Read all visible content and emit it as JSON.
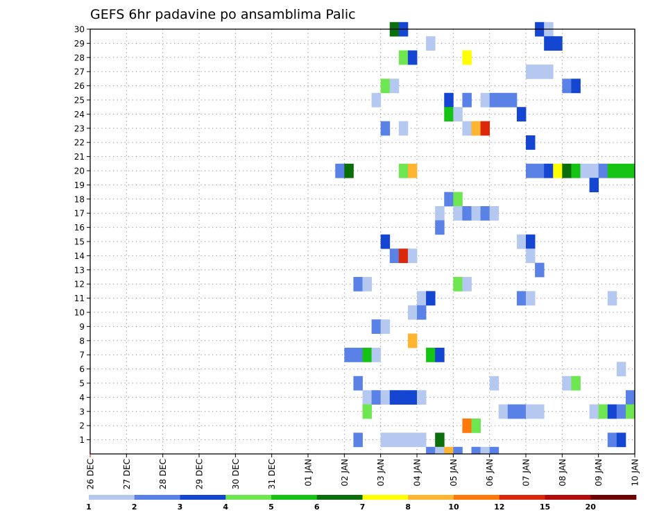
{
  "chart_data": {
    "type": "heatmap",
    "title": "GEFS 6hr padavine po ansamblima Palic",
    "x_tick_labels": [
      "26 DEC",
      "27 DEC",
      "28 DEC",
      "29 DEC",
      "30 DEC",
      "31 DEC",
      "01 JAN",
      "02 JAN",
      "03 JAN",
      "04 JAN",
      "05 JAN",
      "06 JAN",
      "07 JAN",
      "08 JAN",
      "09 JAN",
      "10 JAN"
    ],
    "y_tick_labels": [
      "1",
      "2",
      "3",
      "4",
      "5",
      "6",
      "7",
      "8",
      "9",
      "10",
      "11",
      "12",
      "13",
      "14",
      "15",
      "16",
      "17",
      "18",
      "19",
      "20",
      "21",
      "22",
      "23",
      "24",
      "25",
      "26",
      "27",
      "28",
      "29",
      "30"
    ],
    "grid": true,
    "legend": {
      "placement": "bottom",
      "colors": [
        "#b4c8f0",
        "#5a82e6",
        "#1446d2",
        "#6ee650",
        "#14c314",
        "#0a6e0a",
        "#ffff00",
        "#ffb432",
        "#ff780a",
        "#dc280a",
        "#b40a0a",
        "#6e0000"
      ],
      "labels": [
        "1",
        "2",
        "3",
        "4",
        "5",
        "6",
        "7",
        "8",
        "10",
        "12",
        "15",
        "20"
      ]
    },
    "cells_description": "day = days since 26 DEC 00Z, member = ensemble number (0-30), level = legend color index",
    "cells": [
      {
        "member": 30,
        "day": 8.25,
        "level": 5
      },
      {
        "member": 30,
        "day": 8.5,
        "level": 2
      },
      {
        "member": 30,
        "day": 12.25,
        "level": 2
      },
      {
        "member": 30,
        "day": 12.5,
        "level": 0
      },
      {
        "member": 29,
        "day": 9.25,
        "level": 0
      },
      {
        "member": 29,
        "day": 12.5,
        "level": 2
      },
      {
        "member": 29,
        "day": 12.75,
        "level": 2
      },
      {
        "member": 28,
        "day": 8.5,
        "level": 3
      },
      {
        "member": 28,
        "day": 8.75,
        "level": 2
      },
      {
        "member": 28,
        "day": 10.25,
        "level": 6
      },
      {
        "member": 27,
        "day": 12.0,
        "level": 0
      },
      {
        "member": 27,
        "day": 12.25,
        "level": 0
      },
      {
        "member": 27,
        "day": 12.5,
        "level": 0
      },
      {
        "member": 26,
        "day": 8.0,
        "level": 3
      },
      {
        "member": 26,
        "day": 8.25,
        "level": 0
      },
      {
        "member": 26,
        "day": 13.0,
        "level": 1
      },
      {
        "member": 26,
        "day": 13.25,
        "level": 2
      },
      {
        "member": 25,
        "day": 7.75,
        "level": 0
      },
      {
        "member": 25,
        "day": 9.75,
        "level": 2
      },
      {
        "member": 25,
        "day": 10.25,
        "level": 1
      },
      {
        "member": 25,
        "day": 10.75,
        "level": 0
      },
      {
        "member": 25,
        "day": 11.0,
        "level": 1
      },
      {
        "member": 25,
        "day": 11.25,
        "level": 1
      },
      {
        "member": 25,
        "day": 11.5,
        "level": 1
      },
      {
        "member": 24,
        "day": 9.75,
        "level": 4
      },
      {
        "member": 24,
        "day": 10.0,
        "level": 0
      },
      {
        "member": 24,
        "day": 11.75,
        "level": 2
      },
      {
        "member": 23,
        "day": 8.0,
        "level": 1
      },
      {
        "member": 23,
        "day": 8.5,
        "level": 0
      },
      {
        "member": 23,
        "day": 10.25,
        "level": 0
      },
      {
        "member": 23,
        "day": 10.5,
        "level": 7
      },
      {
        "member": 23,
        "day": 10.75,
        "level": 9
      },
      {
        "member": 22,
        "day": 12.0,
        "level": 2
      },
      {
        "member": 20,
        "day": 6.75,
        "level": 1
      },
      {
        "member": 20,
        "day": 7.0,
        "level": 5
      },
      {
        "member": 20,
        "day": 8.5,
        "level": 3
      },
      {
        "member": 20,
        "day": 8.75,
        "level": 7
      },
      {
        "member": 20,
        "day": 12.0,
        "level": 1
      },
      {
        "member": 20,
        "day": 12.25,
        "level": 1
      },
      {
        "member": 20,
        "day": 12.5,
        "level": 2
      },
      {
        "member": 20,
        "day": 12.75,
        "level": 6
      },
      {
        "member": 20,
        "day": 13.0,
        "level": 5
      },
      {
        "member": 20,
        "day": 13.25,
        "level": 4
      },
      {
        "member": 20,
        "day": 13.5,
        "level": 0
      },
      {
        "member": 20,
        "day": 13.75,
        "level": 0
      },
      {
        "member": 20,
        "day": 14.0,
        "level": 1
      },
      {
        "member": 20,
        "day": 14.25,
        "level": 4
      },
      {
        "member": 20,
        "day": 14.5,
        "level": 4
      },
      {
        "member": 20,
        "day": 14.75,
        "level": 4
      },
      {
        "member": 19,
        "day": 13.75,
        "level": 2
      },
      {
        "member": 18,
        "day": 9.75,
        "level": 1
      },
      {
        "member": 18,
        "day": 10.0,
        "level": 3
      },
      {
        "member": 17,
        "day": 9.5,
        "level": 0
      },
      {
        "member": 17,
        "day": 10.0,
        "level": 0
      },
      {
        "member": 17,
        "day": 10.25,
        "level": 1
      },
      {
        "member": 17,
        "day": 10.5,
        "level": 0
      },
      {
        "member": 17,
        "day": 10.75,
        "level": 1
      },
      {
        "member": 17,
        "day": 11.0,
        "level": 0
      },
      {
        "member": 16,
        "day": 9.5,
        "level": 1
      },
      {
        "member": 15,
        "day": 8.0,
        "level": 2
      },
      {
        "member": 15,
        "day": 11.75,
        "level": 0
      },
      {
        "member": 15,
        "day": 12.0,
        "level": 2
      },
      {
        "member": 14,
        "day": 8.25,
        "level": 1
      },
      {
        "member": 14,
        "day": 8.5,
        "level": 9
      },
      {
        "member": 14,
        "day": 8.75,
        "level": 0
      },
      {
        "member": 14,
        "day": 12.0,
        "level": 0
      },
      {
        "member": 13,
        "day": 12.25,
        "level": 1
      },
      {
        "member": 12,
        "day": 7.25,
        "level": 1
      },
      {
        "member": 12,
        "day": 7.5,
        "level": 0
      },
      {
        "member": 12,
        "day": 10.0,
        "level": 3
      },
      {
        "member": 12,
        "day": 10.25,
        "level": 0
      },
      {
        "member": 11,
        "day": 9.0,
        "level": 0
      },
      {
        "member": 11,
        "day": 9.25,
        "level": 2
      },
      {
        "member": 11,
        "day": 11.75,
        "level": 1
      },
      {
        "member": 11,
        "day": 12.0,
        "level": 0
      },
      {
        "member": 11,
        "day": 14.25,
        "level": 0
      },
      {
        "member": 10,
        "day": 8.75,
        "level": 0
      },
      {
        "member": 10,
        "day": 9.0,
        "level": 1
      },
      {
        "member": 9,
        "day": 7.75,
        "level": 1
      },
      {
        "member": 9,
        "day": 8.0,
        "level": 0
      },
      {
        "member": 8,
        "day": 8.75,
        "level": 7
      },
      {
        "member": 7,
        "day": 7.0,
        "level": 1
      },
      {
        "member": 7,
        "day": 7.25,
        "level": 1
      },
      {
        "member": 7,
        "day": 7.5,
        "level": 4
      },
      {
        "member": 7,
        "day": 7.75,
        "level": 0
      },
      {
        "member": 7,
        "day": 9.25,
        "level": 4
      },
      {
        "member": 7,
        "day": 9.5,
        "level": 2
      },
      {
        "member": 6,
        "day": 14.5,
        "level": 0
      },
      {
        "member": 5,
        "day": 7.25,
        "level": 1
      },
      {
        "member": 5,
        "day": 11.0,
        "level": 0
      },
      {
        "member": 5,
        "day": 13.0,
        "level": 0
      },
      {
        "member": 5,
        "day": 13.25,
        "level": 3
      },
      {
        "member": 4,
        "day": 7.5,
        "level": 0
      },
      {
        "member": 4,
        "day": 7.75,
        "level": 1
      },
      {
        "member": 4,
        "day": 8.0,
        "level": 0
      },
      {
        "member": 4,
        "day": 8.25,
        "level": 2
      },
      {
        "member": 4,
        "day": 8.5,
        "level": 2
      },
      {
        "member": 4,
        "day": 8.75,
        "level": 2
      },
      {
        "member": 4,
        "day": 9.0,
        "level": 0
      },
      {
        "member": 4,
        "day": 14.75,
        "level": 1
      },
      {
        "member": 3,
        "day": 7.5,
        "level": 3
      },
      {
        "member": 3,
        "day": 11.25,
        "level": 0
      },
      {
        "member": 3,
        "day": 11.5,
        "level": 1
      },
      {
        "member": 3,
        "day": 11.75,
        "level": 1
      },
      {
        "member": 3,
        "day": 12.0,
        "level": 0
      },
      {
        "member": 3,
        "day": 12.25,
        "level": 0
      },
      {
        "member": 3,
        "day": 13.75,
        "level": 0
      },
      {
        "member": 3,
        "day": 14.0,
        "level": 3
      },
      {
        "member": 3,
        "day": 14.25,
        "level": 2
      },
      {
        "member": 3,
        "day": 14.5,
        "level": 1
      },
      {
        "member": 3,
        "day": 14.75,
        "level": 3
      },
      {
        "member": 2,
        "day": 10.25,
        "level": 8
      },
      {
        "member": 2,
        "day": 10.5,
        "level": 3
      },
      {
        "member": 1,
        "day": 7.25,
        "level": 1
      },
      {
        "member": 1,
        "day": 8.0,
        "level": 0
      },
      {
        "member": 1,
        "day": 8.25,
        "level": 0
      },
      {
        "member": 1,
        "day": 8.5,
        "level": 0
      },
      {
        "member": 1,
        "day": 8.75,
        "level": 0
      },
      {
        "member": 1,
        "day": 9.0,
        "level": 0
      },
      {
        "member": 1,
        "day": 9.5,
        "level": 5
      },
      {
        "member": 1,
        "day": 14.25,
        "level": 1
      },
      {
        "member": 1,
        "day": 14.5,
        "level": 2
      },
      {
        "member": 0,
        "day": 9.25,
        "level": 1
      },
      {
        "member": 0,
        "day": 9.5,
        "level": 0
      },
      {
        "member": 0,
        "day": 9.75,
        "level": 7
      },
      {
        "member": 0,
        "day": 10.0,
        "level": 1
      },
      {
        "member": 0,
        "day": 10.5,
        "level": 1
      },
      {
        "member": 0,
        "day": 10.75,
        "level": 0
      },
      {
        "member": 0,
        "day": 11.0,
        "level": 1
      }
    ]
  }
}
